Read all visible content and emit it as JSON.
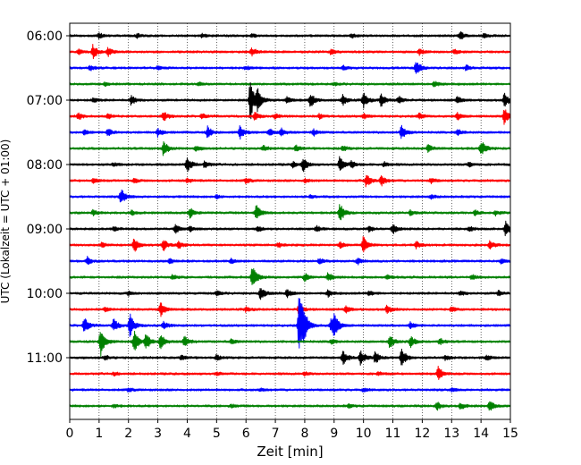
{
  "chart_data": {
    "type": "line",
    "title": "",
    "xlabel": "Zeit  [min]",
    "ylabel": "UTC (Lokalzeit = UTC + 01:00)",
    "xlim": [
      0,
      15
    ],
    "x_ticks": [
      "0",
      "1",
      "2",
      "3",
      "4",
      "5",
      "6",
      "7",
      "8",
      "9",
      "10",
      "11",
      "12",
      "13",
      "14",
      "15"
    ],
    "y_ticks": [
      "06:00",
      "07:00",
      "08:00",
      "09:00",
      "10:00",
      "11:00"
    ],
    "row_interval_min": 15,
    "start_time": "06:00",
    "grid": "vertical-dotted",
    "row_colors": [
      "#000000",
      "#ff0000",
      "#0000ff",
      "#008000"
    ],
    "rows": [
      {
        "label": "06:00",
        "color": "#000000",
        "events": [
          [
            1.0,
            0.3
          ],
          [
            2.3,
            0.25
          ],
          [
            4.5,
            0.25
          ],
          [
            6.2,
            0.2
          ],
          [
            9.6,
            0.25
          ],
          [
            13.3,
            0.5
          ],
          [
            14.1,
            0.3
          ]
        ]
      },
      {
        "label": "06:15",
        "color": "#ff0000",
        "events": [
          [
            0.3,
            0.3
          ],
          [
            0.8,
            0.9
          ],
          [
            1.3,
            0.5
          ],
          [
            6.2,
            0.5
          ],
          [
            8.9,
            0.3
          ],
          [
            11.9,
            0.4
          ],
          [
            13.1,
            0.3
          ]
        ]
      },
      {
        "label": "06:30",
        "color": "#0000ff",
        "events": [
          [
            0.7,
            0.3
          ],
          [
            3.0,
            0.2
          ],
          [
            6.0,
            0.2
          ],
          [
            9.3,
            0.3
          ],
          [
            11.8,
            1.0
          ],
          [
            13.5,
            0.3
          ]
        ]
      },
      {
        "label": "06:45",
        "color": "#008000",
        "events": [
          [
            1.2,
            0.2
          ],
          [
            4.4,
            0.2
          ],
          [
            9.0,
            0.2
          ],
          [
            12.4,
            0.4
          ]
        ]
      },
      {
        "label": "07:00",
        "color": "#000000",
        "events": [
          [
            0.8,
            0.3
          ],
          [
            2.1,
            0.6
          ],
          [
            6.15,
            2.6
          ],
          [
            6.4,
            1.2
          ],
          [
            7.4,
            0.4
          ],
          [
            8.2,
            0.9
          ],
          [
            9.3,
            0.6
          ],
          [
            10.0,
            1.0
          ],
          [
            10.6,
            0.8
          ],
          [
            11.2,
            0.5
          ],
          [
            13.2,
            0.4
          ],
          [
            14.8,
            0.9
          ]
        ]
      },
      {
        "label": "07:15",
        "color": "#ff0000",
        "events": [
          [
            0.3,
            0.4
          ],
          [
            1.3,
            0.3
          ],
          [
            3.2,
            0.6
          ],
          [
            4.5,
            0.3
          ],
          [
            6.3,
            0.5
          ],
          [
            7.0,
            0.3
          ],
          [
            8.5,
            0.3
          ],
          [
            10.0,
            0.3
          ],
          [
            11.9,
            0.4
          ],
          [
            13.2,
            0.4
          ],
          [
            14.8,
            1.0
          ]
        ]
      },
      {
        "label": "07:30",
        "color": "#0000ff",
        "events": [
          [
            0.5,
            0.3
          ],
          [
            1.3,
            0.5
          ],
          [
            3.0,
            0.5
          ],
          [
            4.7,
            0.7
          ],
          [
            5.8,
            0.8
          ],
          [
            6.8,
            0.5
          ],
          [
            7.2,
            0.5
          ],
          [
            8.3,
            0.4
          ],
          [
            11.3,
            0.9
          ],
          [
            13.2,
            0.4
          ]
        ]
      },
      {
        "label": "07:45",
        "color": "#008000",
        "events": [
          [
            3.2,
            1.0
          ],
          [
            4.3,
            0.3
          ],
          [
            6.6,
            0.3
          ],
          [
            7.7,
            0.4
          ],
          [
            9.3,
            0.3
          ],
          [
            12.2,
            0.5
          ],
          [
            14.0,
            1.1
          ]
        ]
      },
      {
        "label": "08:00",
        "color": "#000000",
        "events": [
          [
            1.5,
            0.2
          ],
          [
            4.0,
            1.0
          ],
          [
            4.6,
            0.4
          ],
          [
            7.6,
            0.3
          ],
          [
            7.95,
            0.8
          ],
          [
            9.2,
            1.0
          ],
          [
            9.6,
            0.4
          ],
          [
            10.7,
            0.3
          ],
          [
            13.6,
            0.3
          ]
        ]
      },
      {
        "label": "08:15",
        "color": "#ff0000",
        "events": [
          [
            0.8,
            0.3
          ],
          [
            2.2,
            0.25
          ],
          [
            4.0,
            0.25
          ],
          [
            6.0,
            0.3
          ],
          [
            8.0,
            0.25
          ],
          [
            10.1,
            0.8
          ],
          [
            10.6,
            0.7
          ],
          [
            12.3,
            0.3
          ]
        ]
      },
      {
        "label": "08:30",
        "color": "#0000ff",
        "events": [
          [
            1.75,
            1.0
          ],
          [
            5.0,
            0.2
          ],
          [
            8.2,
            0.2
          ],
          [
            12.3,
            0.25
          ]
        ]
      },
      {
        "label": "08:45",
        "color": "#008000",
        "events": [
          [
            0.8,
            0.3
          ],
          [
            2.1,
            0.3
          ],
          [
            4.1,
            0.6
          ],
          [
            6.35,
            1.1
          ],
          [
            9.2,
            1.2
          ],
          [
            11.6,
            0.3
          ],
          [
            13.8,
            0.3
          ],
          [
            14.5,
            0.3
          ]
        ]
      },
      {
        "label": "09:00",
        "color": "#000000",
        "events": [
          [
            1.5,
            0.3
          ],
          [
            3.6,
            0.5
          ],
          [
            4.1,
            0.3
          ],
          [
            6.4,
            0.35
          ],
          [
            8.4,
            0.4
          ],
          [
            10.2,
            0.3
          ],
          [
            11.0,
            0.6
          ],
          [
            13.6,
            0.3
          ],
          [
            14.85,
            1.0
          ]
        ]
      },
      {
        "label": "09:15",
        "color": "#ff0000",
        "events": [
          [
            1.1,
            0.3
          ],
          [
            2.2,
            0.9
          ],
          [
            3.2,
            0.7
          ],
          [
            3.7,
            0.5
          ],
          [
            7.1,
            0.3
          ],
          [
            9.2,
            0.4
          ],
          [
            10.0,
            1.0
          ],
          [
            11.8,
            0.4
          ],
          [
            14.3,
            0.5
          ]
        ]
      },
      {
        "label": "09:30",
        "color": "#0000ff",
        "events": [
          [
            0.6,
            0.5
          ],
          [
            3.4,
            0.3
          ],
          [
            5.5,
            0.3
          ],
          [
            8.5,
            0.3
          ],
          [
            9.8,
            0.4
          ],
          [
            14.7,
            0.3
          ]
        ]
      },
      {
        "label": "09:45",
        "color": "#008000",
        "events": [
          [
            3.5,
            0.3
          ],
          [
            6.22,
            1.6
          ],
          [
            8.0,
            0.5
          ],
          [
            8.8,
            0.5
          ],
          [
            10.8,
            0.3
          ],
          [
            13.7,
            0.3
          ]
        ]
      },
      {
        "label": "10:00",
        "color": "#000000",
        "events": [
          [
            2.0,
            0.3
          ],
          [
            5.0,
            0.3
          ],
          [
            6.5,
            0.9
          ],
          [
            7.4,
            0.5
          ],
          [
            8.8,
            0.4
          ],
          [
            10.2,
            0.3
          ],
          [
            13.3,
            0.3
          ],
          [
            14.6,
            0.3
          ]
        ]
      },
      {
        "label": "10:15",
        "color": "#ff0000",
        "events": [
          [
            1.2,
            0.3
          ],
          [
            3.1,
            0.9
          ],
          [
            6.0,
            0.3
          ],
          [
            7.8,
            0.6
          ],
          [
            9.4,
            0.4
          ],
          [
            10.8,
            0.5
          ],
          [
            13.0,
            0.3
          ]
        ]
      },
      {
        "label": "10:30",
        "color": "#0000ff",
        "events": [
          [
            0.5,
            1.0
          ],
          [
            1.5,
            0.8
          ],
          [
            2.05,
            1.5
          ],
          [
            3.2,
            0.5
          ],
          [
            7.82,
            4.5
          ],
          [
            7.95,
            1.5
          ],
          [
            8.9,
            0.9
          ],
          [
            9.0,
            1.3
          ],
          [
            11.6,
            0.4
          ]
        ]
      },
      {
        "label": "10:45",
        "color": "#008000",
        "events": [
          [
            1.05,
            1.9
          ],
          [
            2.2,
            1.3
          ],
          [
            2.6,
            1.0
          ],
          [
            3.1,
            1.0
          ],
          [
            3.9,
            0.7
          ],
          [
            5.5,
            0.3
          ],
          [
            8.9,
            0.3
          ],
          [
            10.9,
            0.9
          ],
          [
            11.6,
            0.7
          ],
          [
            12.6,
            0.4
          ]
        ]
      },
      {
        "label": "11:00",
        "color": "#000000",
        "events": [
          [
            1.2,
            0.3
          ],
          [
            3.8,
            0.3
          ],
          [
            5.0,
            0.3
          ],
          [
            9.3,
            0.9
          ],
          [
            9.9,
            1.1
          ],
          [
            10.4,
            0.7
          ],
          [
            11.3,
            1.3
          ],
          [
            12.8,
            0.3
          ],
          [
            14.2,
            0.3
          ]
        ]
      },
      {
        "label": "11:15",
        "color": "#ff0000",
        "events": [
          [
            1.5,
            0.2
          ],
          [
            5.0,
            0.2
          ],
          [
            8.0,
            0.2
          ],
          [
            10.5,
            0.2
          ],
          [
            12.55,
            0.9
          ]
        ]
      },
      {
        "label": "11:30",
        "color": "#0000ff",
        "events": [
          [
            2.0,
            0.2
          ],
          [
            6.5,
            0.2
          ],
          [
            10.0,
            0.2
          ],
          [
            13.0,
            0.2
          ]
        ]
      },
      {
        "label": "11:45",
        "color": "#008000",
        "events": [
          [
            1.5,
            0.2
          ],
          [
            5.5,
            0.2
          ],
          [
            9.5,
            0.2
          ],
          [
            12.5,
            0.5
          ],
          [
            13.3,
            0.4
          ],
          [
            14.3,
            0.6
          ]
        ]
      }
    ]
  }
}
